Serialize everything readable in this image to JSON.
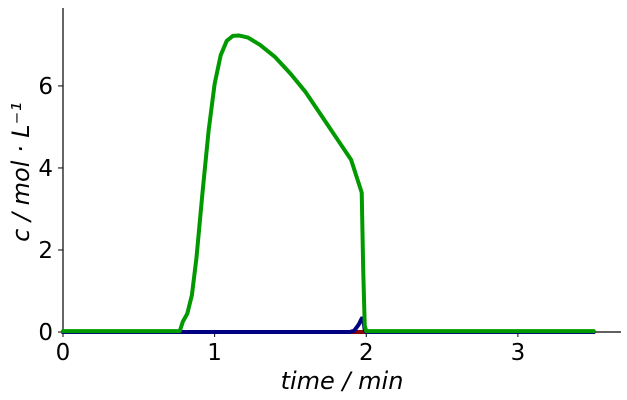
{
  "chart_data": {
    "type": "line",
    "title": "",
    "xlabel": "time / min",
    "ylabel": "c / mol · L⁻¹",
    "xlim": [
      0,
      3.68
    ],
    "ylim": [
      0,
      7.9
    ],
    "xticks": [
      0,
      1,
      2,
      3
    ],
    "yticks": [
      0,
      2,
      4,
      6
    ],
    "grid": false,
    "legend": "none",
    "series": [
      {
        "color": "#009900",
        "points": [
          [
            0,
            0.02
          ],
          [
            0.77,
            0.02
          ],
          [
            0.79,
            0.25
          ],
          [
            0.82,
            0.45
          ],
          [
            0.85,
            0.9
          ],
          [
            0.88,
            1.8
          ],
          [
            0.92,
            3.4
          ],
          [
            0.96,
            4.9
          ],
          [
            1.0,
            6.05
          ],
          [
            1.04,
            6.75
          ],
          [
            1.08,
            7.1
          ],
          [
            1.12,
            7.22
          ],
          [
            1.16,
            7.23
          ],
          [
            1.22,
            7.18
          ],
          [
            1.3,
            7.0
          ],
          [
            1.4,
            6.7
          ],
          [
            1.5,
            6.3
          ],
          [
            1.6,
            5.85
          ],
          [
            1.7,
            5.3
          ],
          [
            1.8,
            4.75
          ],
          [
            1.9,
            4.2
          ],
          [
            1.97,
            3.4
          ],
          [
            1.98,
            1.5
          ],
          [
            1.99,
            0.15
          ],
          [
            2.0,
            0.02
          ],
          [
            3.5,
            0.02
          ]
        ]
      },
      {
        "color": "#000080",
        "points": [
          [
            0,
            0.0
          ],
          [
            1.89,
            0.0
          ],
          [
            1.92,
            0.03
          ],
          [
            1.95,
            0.18
          ],
          [
            1.97,
            0.33
          ],
          [
            1.98,
            0.3
          ],
          [
            1.99,
            0.05
          ],
          [
            2.0,
            0.0
          ],
          [
            3.5,
            0.0
          ]
        ]
      },
      {
        "color": "#8b0000",
        "points": [
          [
            0,
            0.0
          ],
          [
            3.5,
            0.0
          ]
        ]
      }
    ]
  }
}
